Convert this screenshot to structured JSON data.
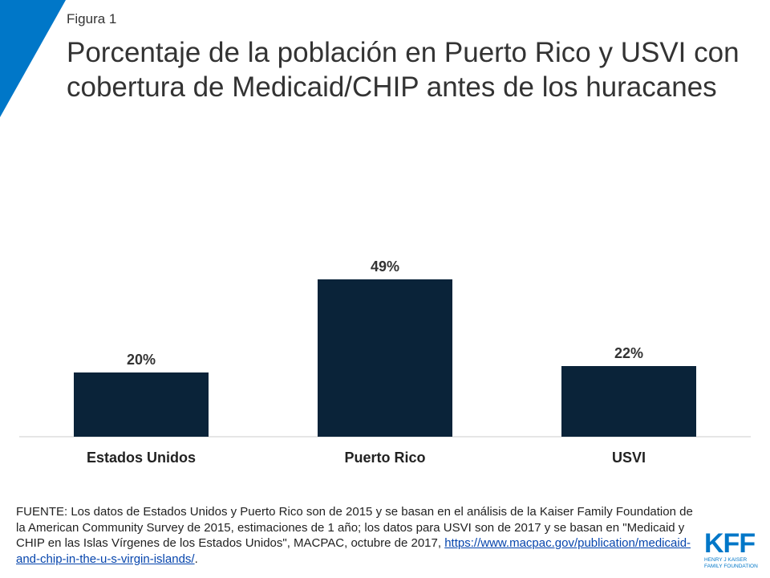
{
  "figure_label": "Figura 1",
  "chart_data": {
    "type": "bar",
    "title": "Porcentaje de la población en Puerto Rico y USVI con cobertura de Medicaid/CHIP antes de los huracanes",
    "categories": [
      "Estados Unidos",
      "Puerto Rico",
      "USVI"
    ],
    "values": [
      20,
      49,
      22
    ],
    "value_labels": [
      "20%",
      "49%",
      "22%"
    ],
    "color": "#0a2339"
  },
  "source": {
    "text": "FUENTE: Los datos de Estados Unidos y Puerto Rico son de 2015 y se basan en el análisis de la Kaiser Family Foundation de la American Community Survey de 2015, estimaciones de 1 año; los datos para USVI son de 2017 y se basan en \"Medicaid y CHIP en las Islas Vírgenes de los Estados Unidos\", MACPAC, octubre de 2017,",
    "link": "https://www.macpac.gov/publication/medicaid-and-chip-in-the-u-s-virgin-islands/",
    "end": "."
  },
  "logo": {
    "text": "KFF",
    "line1": "HENRY J KAISER",
    "line2": "FAMILY FOUNDATION"
  }
}
